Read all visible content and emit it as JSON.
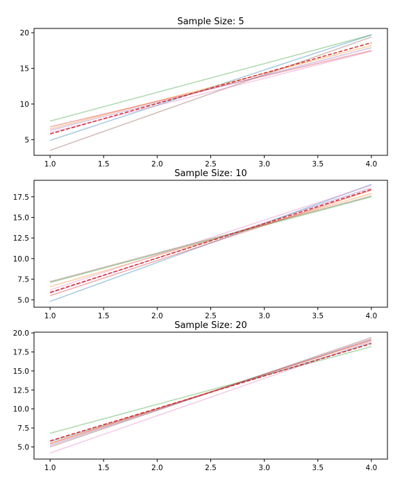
{
  "chart_data": [
    {
      "type": "line",
      "title": "Sample Size: 5",
      "xlabel": "",
      "ylabel": "",
      "xlim": [
        0.85,
        4.15
      ],
      "ylim": [
        2.8,
        20.6
      ],
      "xticks": [
        1.0,
        1.5,
        2.0,
        2.5,
        3.0,
        3.5,
        4.0
      ],
      "xtick_labels": [
        "1.0",
        "1.5",
        "2.0",
        "2.5",
        "3.0",
        "3.5",
        "4.0"
      ],
      "yticks": [
        5,
        10,
        15,
        20
      ],
      "ytick_labels": [
        "5",
        "10",
        "15",
        "20"
      ],
      "grid": false,
      "legend": false,
      "x": [
        1.0,
        4.0
      ],
      "series": [
        {
          "color": "#1f77b4",
          "opacity": 0.4,
          "dashed": false,
          "values": [
            4.9,
            19.7
          ]
        },
        {
          "color": "#ff7f0e",
          "opacity": 0.4,
          "dashed": false,
          "values": [
            6.5,
            18.2
          ]
        },
        {
          "color": "#2ca02c",
          "opacity": 0.4,
          "dashed": false,
          "values": [
            7.6,
            19.7
          ]
        },
        {
          "color": "#d62728",
          "opacity": 0.4,
          "dashed": false,
          "values": [
            6.8,
            17.5
          ]
        },
        {
          "color": "#9467bd",
          "opacity": 0.4,
          "dashed": false,
          "values": [
            6.3,
            17.9
          ]
        },
        {
          "color": "#8c564b",
          "opacity": 0.4,
          "dashed": false,
          "values": [
            3.5,
            19.4
          ]
        },
        {
          "color": "#e377c2",
          "opacity": 0.4,
          "dashed": false,
          "values": [
            6.0,
            17.4
          ]
        },
        {
          "color": "#d62728",
          "opacity": 1.0,
          "dashed": true,
          "values": [
            5.8,
            18.6
          ]
        }
      ]
    },
    {
      "type": "line",
      "title": "Sample Size: 10",
      "xlabel": "",
      "ylabel": "",
      "xlim": [
        0.85,
        4.15
      ],
      "ylim": [
        4.1,
        19.5
      ],
      "xticks": [
        1.0,
        1.5,
        2.0,
        2.5,
        3.0,
        3.5,
        4.0
      ],
      "xtick_labels": [
        "1.0",
        "1.5",
        "2.0",
        "2.5",
        "3.0",
        "3.5",
        "4.0"
      ],
      "yticks": [
        5.0,
        7.5,
        10.0,
        12.5,
        15.0,
        17.5
      ],
      "ytick_labels": [
        "5.0",
        "7.5",
        "10.0",
        "12.5",
        "15.0",
        "17.5"
      ],
      "grid": false,
      "legend": false,
      "x": [
        1.0,
        4.0
      ],
      "series": [
        {
          "color": "#1f77b4",
          "opacity": 0.4,
          "dashed": false,
          "values": [
            4.8,
            19.0
          ]
        },
        {
          "color": "#ff7f0e",
          "opacity": 0.4,
          "dashed": false,
          "values": [
            6.6,
            17.9
          ]
        },
        {
          "color": "#2ca02c",
          "opacity": 0.4,
          "dashed": false,
          "values": [
            7.1,
            17.5
          ]
        },
        {
          "color": "#d62728",
          "opacity": 0.4,
          "dashed": false,
          "values": [
            5.5,
            18.3
          ]
        },
        {
          "color": "#9467bd",
          "opacity": 0.4,
          "dashed": false,
          "values": [
            5.8,
            18.6
          ]
        },
        {
          "color": "#8c564b",
          "opacity": 0.4,
          "dashed": false,
          "values": [
            7.2,
            17.6
          ]
        },
        {
          "color": "#e377c2",
          "opacity": 0.4,
          "dashed": false,
          "values": [
            6.2,
            18.9
          ]
        },
        {
          "color": "#d62728",
          "opacity": 1.0,
          "dashed": true,
          "values": [
            5.9,
            18.4
          ]
        }
      ]
    },
    {
      "type": "line",
      "title": "Sample Size: 20",
      "xlabel": "",
      "ylabel": "",
      "xlim": [
        0.85,
        4.15
      ],
      "ylim": [
        3.4,
        20.1
      ],
      "xticks": [
        1.0,
        1.5,
        2.0,
        2.5,
        3.0,
        3.5,
        4.0
      ],
      "xtick_labels": [
        "1.0",
        "1.5",
        "2.0",
        "2.5",
        "3.0",
        "3.5",
        "4.0"
      ],
      "yticks": [
        5.0,
        7.5,
        10.0,
        12.5,
        15.0,
        17.5,
        20.0
      ],
      "ytick_labels": [
        "5.0",
        "7.5",
        "10.0",
        "12.5",
        "15.0",
        "17.5",
        "20.0"
      ],
      "grid": false,
      "legend": false,
      "x": [
        1.0,
        4.0
      ],
      "series": [
        {
          "color": "#1f77b4",
          "opacity": 0.4,
          "dashed": false,
          "values": [
            5.7,
            18.7
          ]
        },
        {
          "color": "#ff7f0e",
          "opacity": 0.4,
          "dashed": false,
          "values": [
            5.5,
            19.0
          ]
        },
        {
          "color": "#2ca02c",
          "opacity": 0.4,
          "dashed": false,
          "values": [
            6.8,
            18.2
          ]
        },
        {
          "color": "#d62728",
          "opacity": 0.4,
          "dashed": false,
          "values": [
            5.4,
            19.1
          ]
        },
        {
          "color": "#9467bd",
          "opacity": 0.4,
          "dashed": false,
          "values": [
            5.2,
            19.2
          ]
        },
        {
          "color": "#8c564b",
          "opacity": 0.4,
          "dashed": false,
          "values": [
            5.0,
            19.4
          ]
        },
        {
          "color": "#e377c2",
          "opacity": 0.4,
          "dashed": false,
          "values": [
            4.2,
            18.9
          ]
        },
        {
          "color": "#d62728",
          "opacity": 1.0,
          "dashed": true,
          "values": [
            5.8,
            18.6
          ]
        }
      ]
    }
  ]
}
